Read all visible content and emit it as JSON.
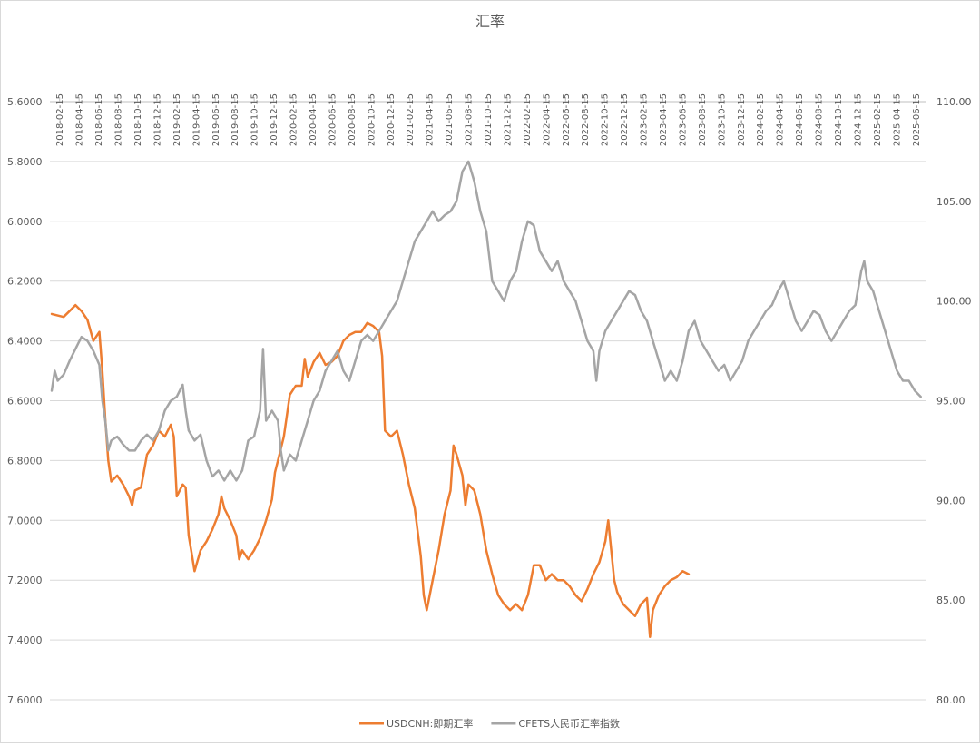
{
  "chart_data": {
    "type": "line",
    "title": "汇率",
    "xlabel": "",
    "ylabel": "",
    "x_ticks": [
      "2018-02-15",
      "2018-04-15",
      "2018-06-15",
      "2018-08-15",
      "2018-10-15",
      "2018-12-15",
      "2019-02-15",
      "2019-04-15",
      "2019-06-15",
      "2019-08-15",
      "2019-10-15",
      "2019-12-15",
      "2020-02-15",
      "2020-04-15",
      "2020-06-15",
      "2020-08-15",
      "2020-10-15",
      "2020-12-15",
      "2021-02-15",
      "2021-04-15",
      "2021-06-15",
      "2021-08-15",
      "2021-10-15",
      "2021-12-15",
      "2022-02-15",
      "2022-04-15",
      "2022-06-15",
      "2022-08-15",
      "2022-10-15",
      "2022-12-15",
      "2023-02-15",
      "2023-04-15",
      "2023-06-15",
      "2023-08-15",
      "2023-10-15",
      "2023-12-15",
      "2024-02-15",
      "2024-04-15",
      "2024-06-15",
      "2024-08-15",
      "2024-10-15",
      "2024-12-15",
      "2025-02-15",
      "2025-04-15",
      "2025-06-15"
    ],
    "y_left": {
      "ticks": [
        "5.6000",
        "5.8000",
        "6.0000",
        "6.2000",
        "6.4000",
        "6.6000",
        "6.8000",
        "7.0000",
        "7.2000",
        "7.4000",
        "7.6000"
      ],
      "min": 5.6,
      "max": 7.6,
      "inverted": true
    },
    "y_right": {
      "ticks": [
        "110.00",
        "105.00",
        "100.00",
        "95.00",
        "90.00",
        "85.00",
        "80.00"
      ],
      "min": 80,
      "max": 110
    },
    "grid": "horizontal",
    "legend_position": "bottom",
    "series": [
      {
        "name": "USDCNH:即期汇率",
        "axis": "left",
        "color": "#ED7D31",
        "points": [
          [
            0,
            6.31
          ],
          [
            2,
            6.32
          ],
          [
            3,
            6.3
          ],
          [
            4,
            6.28
          ],
          [
            5,
            6.3
          ],
          [
            6,
            6.33
          ],
          [
            7,
            6.4
          ],
          [
            8,
            6.37
          ],
          [
            8.5,
            6.5
          ],
          [
            9,
            6.66
          ],
          [
            9.5,
            6.8
          ],
          [
            10,
            6.87
          ],
          [
            11,
            6.85
          ],
          [
            12,
            6.88
          ],
          [
            13,
            6.92
          ],
          [
            13.5,
            6.95
          ],
          [
            14,
            6.9
          ],
          [
            15,
            6.89
          ],
          [
            16,
            6.78
          ],
          [
            17,
            6.75
          ],
          [
            18,
            6.7
          ],
          [
            19,
            6.72
          ],
          [
            20,
            6.68
          ],
          [
            20.5,
            6.72
          ],
          [
            21,
            6.92
          ],
          [
            22,
            6.88
          ],
          [
            22.5,
            6.89
          ],
          [
            23,
            7.05
          ],
          [
            23.5,
            7.11
          ],
          [
            24,
            7.17
          ],
          [
            25,
            7.1
          ],
          [
            26,
            7.07
          ],
          [
            27,
            7.03
          ],
          [
            28,
            6.98
          ],
          [
            28.5,
            6.92
          ],
          [
            29,
            6.96
          ],
          [
            30,
            7.0
          ],
          [
            31,
            7.05
          ],
          [
            31.5,
            7.13
          ],
          [
            32,
            7.1
          ],
          [
            33,
            7.13
          ],
          [
            34,
            7.1
          ],
          [
            35,
            7.06
          ],
          [
            36,
            7.0
          ],
          [
            37,
            6.93
          ],
          [
            37.5,
            6.84
          ],
          [
            38,
            6.8
          ],
          [
            39,
            6.72
          ],
          [
            40,
            6.58
          ],
          [
            41,
            6.55
          ],
          [
            42,
            6.55
          ],
          [
            42.5,
            6.46
          ],
          [
            43,
            6.52
          ],
          [
            44,
            6.47
          ],
          [
            45,
            6.44
          ],
          [
            46,
            6.48
          ],
          [
            47,
            6.47
          ],
          [
            48,
            6.45
          ],
          [
            49,
            6.4
          ],
          [
            50,
            6.38
          ],
          [
            51,
            6.37
          ],
          [
            52,
            6.37
          ],
          [
            53,
            6.34
          ],
          [
            54,
            6.35
          ],
          [
            55,
            6.37
          ],
          [
            55.5,
            6.45
          ],
          [
            56,
            6.7
          ],
          [
            57,
            6.72
          ],
          [
            58,
            6.7
          ],
          [
            59,
            6.78
          ],
          [
            60,
            6.88
          ],
          [
            61,
            6.96
          ],
          [
            62,
            7.12
          ],
          [
            62.5,
            7.25
          ],
          [
            63,
            7.3
          ],
          [
            64,
            7.2
          ],
          [
            65,
            7.1
          ],
          [
            66,
            6.98
          ],
          [
            67,
            6.9
          ],
          [
            67.5,
            6.75
          ],
          [
            68,
            6.78
          ],
          [
            69,
            6.85
          ],
          [
            69.5,
            6.95
          ],
          [
            70,
            6.88
          ],
          [
            71,
            6.9
          ],
          [
            72,
            6.98
          ],
          [
            73,
            7.1
          ],
          [
            74,
            7.18
          ],
          [
            75,
            7.25
          ],
          [
            76,
            7.28
          ],
          [
            77,
            7.3
          ],
          [
            78,
            7.28
          ],
          [
            79,
            7.3
          ],
          [
            80,
            7.25
          ],
          [
            81,
            7.15
          ],
          [
            82,
            7.15
          ],
          [
            83,
            7.2
          ],
          [
            84,
            7.18
          ],
          [
            85,
            7.2
          ],
          [
            86,
            7.2
          ],
          [
            87,
            7.22
          ],
          [
            88,
            7.25
          ],
          [
            89,
            7.27
          ],
          [
            90,
            7.23
          ],
          [
            91,
            7.18
          ],
          [
            91.5,
            7.16
          ],
          [
            92,
            7.14
          ],
          [
            93,
            7.07
          ],
          [
            93.5,
            7.0
          ],
          [
            94,
            7.1
          ],
          [
            94.5,
            7.2
          ],
          [
            95,
            7.24
          ],
          [
            96,
            7.28
          ],
          [
            97,
            7.3
          ],
          [
            98,
            7.32
          ],
          [
            99,
            7.28
          ],
          [
            100,
            7.26
          ],
          [
            100.5,
            7.39
          ],
          [
            101,
            7.3
          ],
          [
            102,
            7.25
          ],
          [
            103,
            7.22
          ],
          [
            104,
            7.2
          ],
          [
            105,
            7.19
          ],
          [
            106,
            7.17
          ],
          [
            107,
            7.18
          ]
        ]
      },
      {
        "name": "CFETS人民币汇率指数",
        "axis": "right",
        "color": "#A5A5A5",
        "points": [
          [
            0,
            95.5
          ],
          [
            0.5,
            96.5
          ],
          [
            1,
            96.0
          ],
          [
            2,
            96.3
          ],
          [
            3,
            97.0
          ],
          [
            4,
            97.6
          ],
          [
            5,
            98.2
          ],
          [
            6,
            98.0
          ],
          [
            7,
            97.5
          ],
          [
            8,
            96.8
          ],
          [
            8.5,
            95.0
          ],
          [
            9,
            94.0
          ],
          [
            9.5,
            92.5
          ],
          [
            10,
            93.0
          ],
          [
            11,
            93.2
          ],
          [
            12,
            92.8
          ],
          [
            13,
            92.5
          ],
          [
            14,
            92.5
          ],
          [
            15,
            93.0
          ],
          [
            16,
            93.3
          ],
          [
            17,
            93.0
          ],
          [
            18,
            93.5
          ],
          [
            19,
            94.5
          ],
          [
            20,
            95.0
          ],
          [
            21,
            95.2
          ],
          [
            22,
            95.8
          ],
          [
            22.5,
            94.5
          ],
          [
            23,
            93.5
          ],
          [
            24,
            93.0
          ],
          [
            25,
            93.3
          ],
          [
            26,
            92.0
          ],
          [
            27,
            91.2
          ],
          [
            28,
            91.5
          ],
          [
            29,
            91.0
          ],
          [
            30,
            91.5
          ],
          [
            31,
            91.0
          ],
          [
            32,
            91.5
          ],
          [
            33,
            93.0
          ],
          [
            34,
            93.2
          ],
          [
            35,
            94.5
          ],
          [
            35.5,
            97.6
          ],
          [
            36,
            94.0
          ],
          [
            37,
            94.5
          ],
          [
            38,
            94.0
          ],
          [
            38.5,
            92.5
          ],
          [
            39,
            91.5
          ],
          [
            40,
            92.3
          ],
          [
            41,
            92.0
          ],
          [
            42,
            93.0
          ],
          [
            43,
            94.0
          ],
          [
            44,
            95.0
          ],
          [
            45,
            95.5
          ],
          [
            46,
            96.5
          ],
          [
            47,
            97.0
          ],
          [
            48,
            97.5
          ],
          [
            49,
            96.5
          ],
          [
            50,
            96.0
          ],
          [
            51,
            97.0
          ],
          [
            52,
            98.0
          ],
          [
            53,
            98.3
          ],
          [
            54,
            98.0
          ],
          [
            55,
            98.5
          ],
          [
            56,
            99.0
          ],
          [
            57,
            99.5
          ],
          [
            58,
            100.0
          ],
          [
            59,
            101.0
          ],
          [
            60,
            102.0
          ],
          [
            61,
            103.0
          ],
          [
            62,
            103.5
          ],
          [
            63,
            104.0
          ],
          [
            64,
            104.5
          ],
          [
            65,
            104.0
          ],
          [
            66,
            104.3
          ],
          [
            67,
            104.5
          ],
          [
            68,
            105.0
          ],
          [
            69,
            106.5
          ],
          [
            70,
            107.0
          ],
          [
            71,
            106.0
          ],
          [
            72,
            104.5
          ],
          [
            73,
            103.5
          ],
          [
            74,
            101.0
          ],
          [
            75,
            100.5
          ],
          [
            76,
            100.0
          ],
          [
            77,
            101.0
          ],
          [
            78,
            101.5
          ],
          [
            79,
            103.0
          ],
          [
            80,
            104.0
          ],
          [
            81,
            103.8
          ],
          [
            82,
            102.5
          ],
          [
            83,
            102.0
          ],
          [
            84,
            101.5
          ],
          [
            85,
            102.0
          ],
          [
            86,
            101.0
          ],
          [
            87,
            100.5
          ],
          [
            88,
            100.0
          ],
          [
            89,
            99.0
          ],
          [
            90,
            98.0
          ],
          [
            91,
            97.5
          ],
          [
            91.5,
            96.0
          ],
          [
            92,
            97.5
          ],
          [
            93,
            98.5
          ],
          [
            94,
            99.0
          ],
          [
            95,
            99.5
          ],
          [
            96,
            100.0
          ],
          [
            97,
            100.5
          ],
          [
            98,
            100.3
          ],
          [
            99,
            99.5
          ],
          [
            100,
            99.0
          ],
          [
            101,
            98.0
          ],
          [
            102,
            97.0
          ],
          [
            103,
            96.0
          ],
          [
            104,
            96.5
          ],
          [
            105,
            96.0
          ],
          [
            106,
            97.0
          ],
          [
            107,
            98.5
          ],
          [
            108,
            99.0
          ],
          [
            109,
            98.0
          ],
          [
            110,
            97.5
          ],
          [
            111,
            97.0
          ],
          [
            112,
            96.5
          ],
          [
            113,
            96.8
          ],
          [
            114,
            96.0
          ],
          [
            115,
            96.5
          ],
          [
            116,
            97.0
          ],
          [
            117,
            98.0
          ],
          [
            118,
            98.5
          ],
          [
            119,
            99.0
          ],
          [
            120,
            99.5
          ],
          [
            121,
            99.8
          ],
          [
            122,
            100.5
          ],
          [
            123,
            101.0
          ],
          [
            124,
            100.0
          ],
          [
            125,
            99.0
          ],
          [
            126,
            98.5
          ],
          [
            127,
            99.0
          ],
          [
            128,
            99.5
          ],
          [
            129,
            99.3
          ],
          [
            130,
            98.5
          ],
          [
            131,
            98.0
          ],
          [
            132,
            98.5
          ],
          [
            133,
            99.0
          ],
          [
            134,
            99.5
          ],
          [
            135,
            99.8
          ],
          [
            136,
            101.5
          ],
          [
            136.5,
            102.0
          ],
          [
            137,
            101.0
          ],
          [
            138,
            100.5
          ],
          [
            139,
            99.5
          ],
          [
            140,
            98.5
          ],
          [
            141,
            97.5
          ],
          [
            142,
            96.5
          ],
          [
            143,
            96.0
          ],
          [
            144,
            96.0
          ],
          [
            145,
            95.5
          ],
          [
            146,
            95.2
          ]
        ]
      }
    ]
  }
}
